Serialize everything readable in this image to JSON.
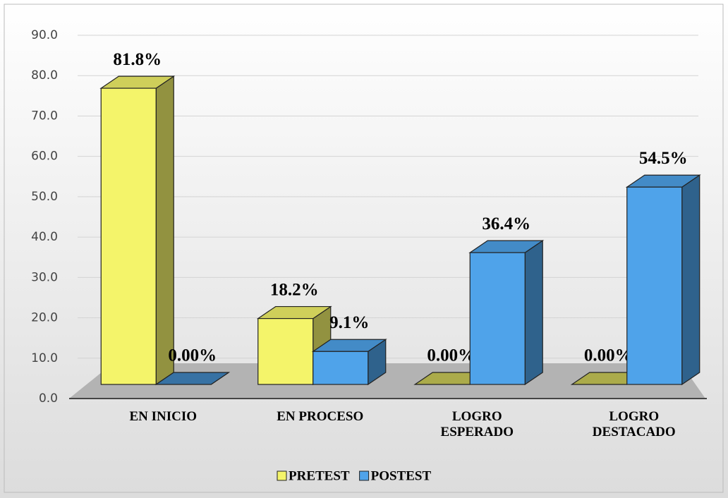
{
  "chart_data": {
    "type": "bar3d",
    "categories": [
      "EN INICIO",
      "EN PROCESO",
      "LOGRO ESPERADO",
      "LOGRO DESTACADO"
    ],
    "series": [
      {
        "name": "PRETEST",
        "color": "#f4f46a",
        "values": [
          81.8,
          18.2,
          0,
          0
        ],
        "value_labels": [
          "81.8%",
          "18.2%",
          "0.00%",
          "0.00%"
        ]
      },
      {
        "name": "POSTEST",
        "color": "#4fa3ea",
        "values": [
          0,
          9.1,
          36.4,
          54.5
        ],
        "value_labels": [
          "0.00%",
          "9.1%",
          "36.4%",
          "54.5%"
        ]
      }
    ],
    "ylim": [
      0,
      90
    ],
    "yticks": [
      {
        "value": 0,
        "label": "0.0"
      },
      {
        "value": 10,
        "label": "10.0"
      },
      {
        "value": 20,
        "label": "20.0"
      },
      {
        "value": 30,
        "label": "30.0"
      },
      {
        "value": 40,
        "label": "40.0"
      },
      {
        "value": 50,
        "label": "50.0"
      },
      {
        "value": 60,
        "label": "60.0"
      },
      {
        "value": 70,
        "label": "70.0"
      },
      {
        "value": 80,
        "label": "80.0"
      },
      {
        "value": 90,
        "label": "90.0"
      }
    ],
    "grid": true,
    "legend": "bottom"
  }
}
